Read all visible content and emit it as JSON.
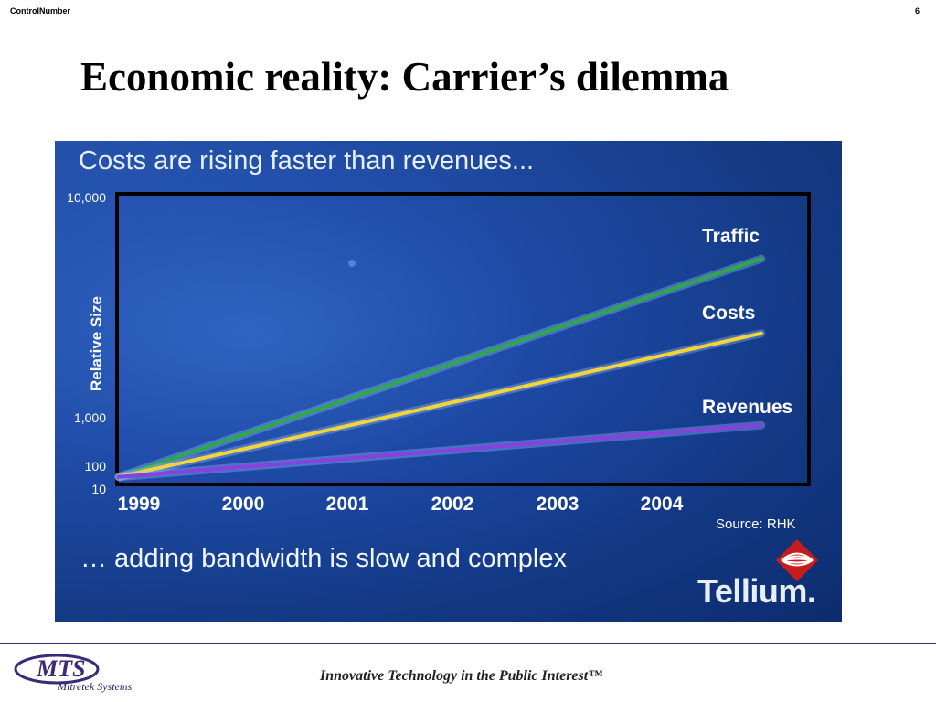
{
  "header": {
    "label": "ControlNumber",
    "page_number": "6"
  },
  "slide": {
    "title": "Economic reality: Carrier’s dilemma"
  },
  "panel": {
    "heading": "Costs are rising faster than revenues...",
    "footer_note": "… adding bandwidth is slow and complex",
    "source": "Source: RHK",
    "brand": "Tellium."
  },
  "chart_data": {
    "type": "line",
    "title": "Costs are rising faster than revenues...",
    "xlabel": "",
    "ylabel": "Relative Size",
    "x": [
      "1999",
      "2000",
      "2001",
      "2002",
      "2003",
      "2004"
    ],
    "y_tick_labels": [
      "10,000",
      "1,000",
      "100",
      "10"
    ],
    "series": [
      {
        "name": "Traffic",
        "color": "#2fa84a",
        "x_start": 1999,
        "x_end": 2004.6,
        "y_fraction_start": 0.02,
        "y_fraction_end": 0.78
      },
      {
        "name": "Costs",
        "color": "#f3d43a",
        "x_start": 1999,
        "x_end": 2004.6,
        "y_fraction_start": 0.02,
        "y_fraction_end": 0.52
      },
      {
        "name": "Revenues",
        "color": "#8a3fe0",
        "x_start": 1999,
        "x_end": 2004.6,
        "y_fraction_start": 0.02,
        "y_fraction_end": 0.2
      }
    ],
    "grid": false,
    "legend": "inline-right"
  },
  "footer": {
    "logo_text": "MTS",
    "logo_sub": "Mitretek Systems",
    "tagline": "Innovative Technology in the Public Interest™"
  }
}
